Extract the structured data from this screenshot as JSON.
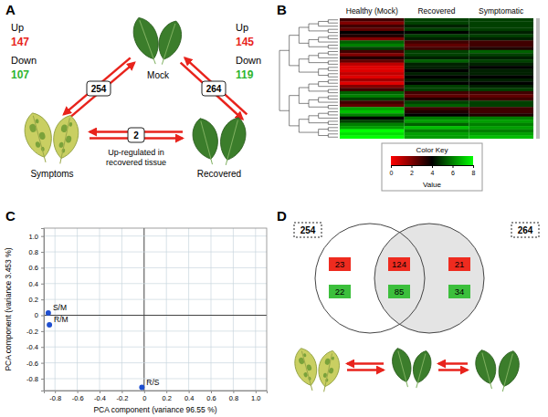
{
  "diagram_a": {
    "panel": "A",
    "center_label": "Mock",
    "left": {
      "label": "Symptoms",
      "up_label": "Up",
      "up": 147,
      "down_label": "Down",
      "down": 107,
      "total": 254
    },
    "right": {
      "label": "Recovered",
      "up_label": "Up",
      "up": 145,
      "down_label": "Down",
      "down": 119,
      "total": 264
    },
    "between": {
      "total": 2,
      "lines": [
        "Up-regulated in",
        "recovered tissue"
      ]
    }
  },
  "chart_data": [
    {
      "type": "heatmap",
      "panel": "B",
      "columns": [
        "Healthy (Mock)",
        "Recovered",
        "Symptomatic"
      ],
      "cells": [
        [
          3,
          5,
          5
        ],
        [
          2,
          5,
          5
        ],
        [
          3,
          4.5,
          5
        ],
        [
          2.5,
          5,
          5
        ],
        [
          4,
          4,
          4.5
        ],
        [
          3.5,
          5,
          5
        ],
        [
          2,
          4.5,
          4.5
        ],
        [
          5.5,
          3,
          3
        ],
        [
          6,
          2.5,
          3
        ],
        [
          5,
          3,
          3.5
        ],
        [
          3,
          5,
          5.5
        ],
        [
          2,
          5,
          5
        ],
        [
          3.5,
          4.5,
          4.5
        ],
        [
          2.5,
          5.5,
          5
        ],
        [
          1,
          4.5,
          4.5
        ],
        [
          0.5,
          4.5,
          4
        ],
        [
          0.5,
          4,
          4.5
        ],
        [
          1,
          4.5,
          4.5
        ],
        [
          0.5,
          4,
          4
        ],
        [
          1.5,
          4.5,
          4.5
        ],
        [
          0.5,
          4,
          4
        ],
        [
          2,
          5,
          4.5
        ],
        [
          3,
          5,
          5
        ],
        [
          5.5,
          3,
          3
        ],
        [
          6,
          2.5,
          2.5
        ],
        [
          5,
          3.5,
          3
        ],
        [
          3,
          5,
          5
        ],
        [
          2.5,
          5.5,
          5
        ],
        [
          6.5,
          3,
          3
        ],
        [
          7,
          3.5,
          3
        ],
        [
          6,
          4,
          3.5
        ],
        [
          4,
          6,
          6
        ],
        [
          5,
          6.5,
          6.5
        ],
        [
          6,
          5.5,
          6
        ],
        [
          6.5,
          7,
          6.5
        ],
        [
          8,
          6,
          6
        ],
        [
          7.5,
          6.5,
          6.5
        ],
        [
          8,
          6.5,
          7
        ]
      ],
      "color_key": {
        "title": "Color Key",
        "label": "Value",
        "range": [
          0,
          8
        ],
        "ticks": [
          0,
          2,
          4,
          6,
          8
        ]
      }
    },
    {
      "type": "scatter",
      "panel": "C",
      "x_label": "PCA component (variance 96.55 %)",
      "y_label": "PCA component (variance 3.453 %)",
      "x": [
        -0.86,
        -0.85,
        -0.02
      ],
      "values": [
        0.03,
        -0.12,
        -0.91
      ],
      "point_labels": [
        "S/M",
        "R/M",
        "R/S"
      ],
      "color": "#1f4fd0",
      "marker": "circle",
      "xlim": [
        -0.9,
        1.1
      ],
      "ylim": [
        -0.95,
        1.1
      ],
      "xticks": [
        -0.8,
        -0.6,
        -0.4,
        -0.2,
        0,
        0.2,
        0.4,
        0.6,
        0.8,
        {
          "value": 1,
          "label": "1.0"
        }
      ],
      "yticks": [
        -0.8,
        -0.6,
        -0.4,
        -0.2,
        0,
        0.2,
        0.4,
        0.6,
        0.8,
        {
          "value": 1,
          "label": "1.0"
        }
      ],
      "grid": true
    }
  ],
  "diagram_d": {
    "panel": "D",
    "left_total": 254,
    "right_total": 264,
    "regions": [
      {
        "up": 23,
        "down": 22
      },
      {
        "up": 124,
        "down": 85
      },
      {
        "up": 21,
        "down": 34
      }
    ]
  }
}
